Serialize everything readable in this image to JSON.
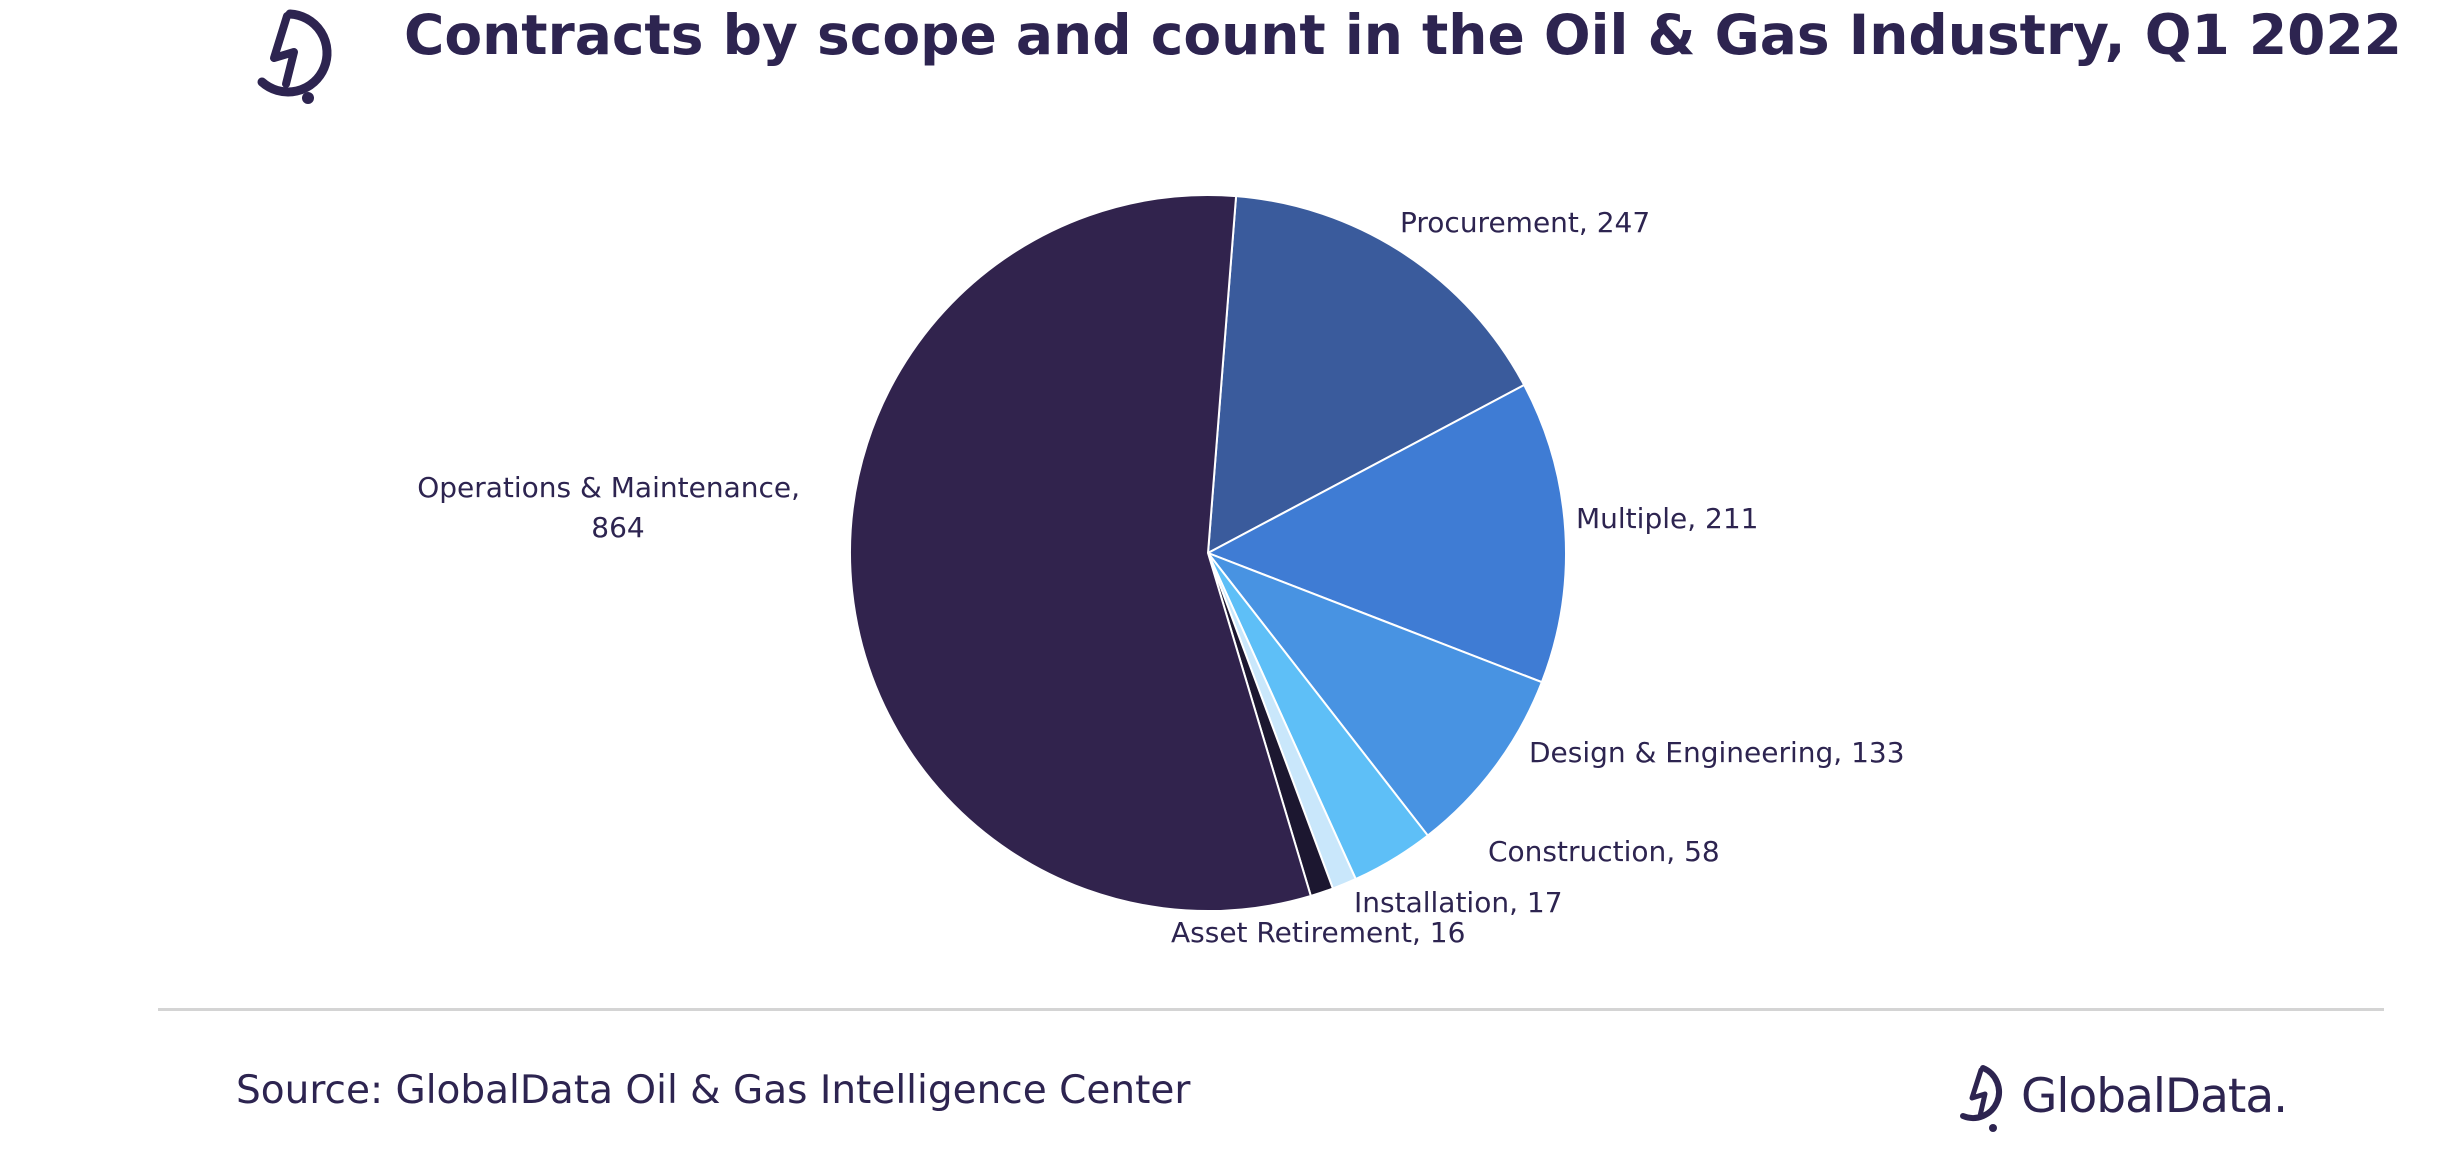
{
  "header": {
    "title": "Contracts by scope and count in the Oil & Gas Industry, Q1 2022",
    "logo_icon": "globaldata-mark-icon"
  },
  "chart_data": {
    "type": "pie",
    "title": "Contracts by scope and count in the Oil & Gas Industry, Q1 2022",
    "slices": [
      {
        "label": "Procurement",
        "value": 247,
        "color": "#3a5b9c",
        "label_lines": [
          "Procurement, 247"
        ]
      },
      {
        "label": "Multiple",
        "value": 211,
        "color": "#3f7cd4",
        "label_lines": [
          "Multiple, 211"
        ]
      },
      {
        "label": "Design & Engineering",
        "value": 133,
        "color": "#4893e2",
        "label_lines": [
          "Design & Engineering, 133"
        ]
      },
      {
        "label": "Construction",
        "value": 58,
        "color": "#5ebff7",
        "label_lines": [
          "Construction, 58"
        ]
      },
      {
        "label": "Installation",
        "value": 17,
        "color": "#c9e7fb",
        "label_lines": [
          "Installation, 17"
        ]
      },
      {
        "label": "Asset Retirement",
        "value": 16,
        "color": "#1c1730",
        "label_lines": [
          "Asset Retirement, 16"
        ]
      },
      {
        "label": "Operations & Maintenance",
        "value": 864,
        "color": "#31234d",
        "label_lines": [
          "Operations & Maintenance,",
          "864"
        ]
      }
    ]
  },
  "footer": {
    "source": "Source: GlobalData Oil & Gas Intelligence Center",
    "brand": "GlobalData.",
    "brand_icon": "globaldata-mark-icon"
  },
  "colors": {
    "text": "#2d2450",
    "divider": "#d4d4d4"
  }
}
